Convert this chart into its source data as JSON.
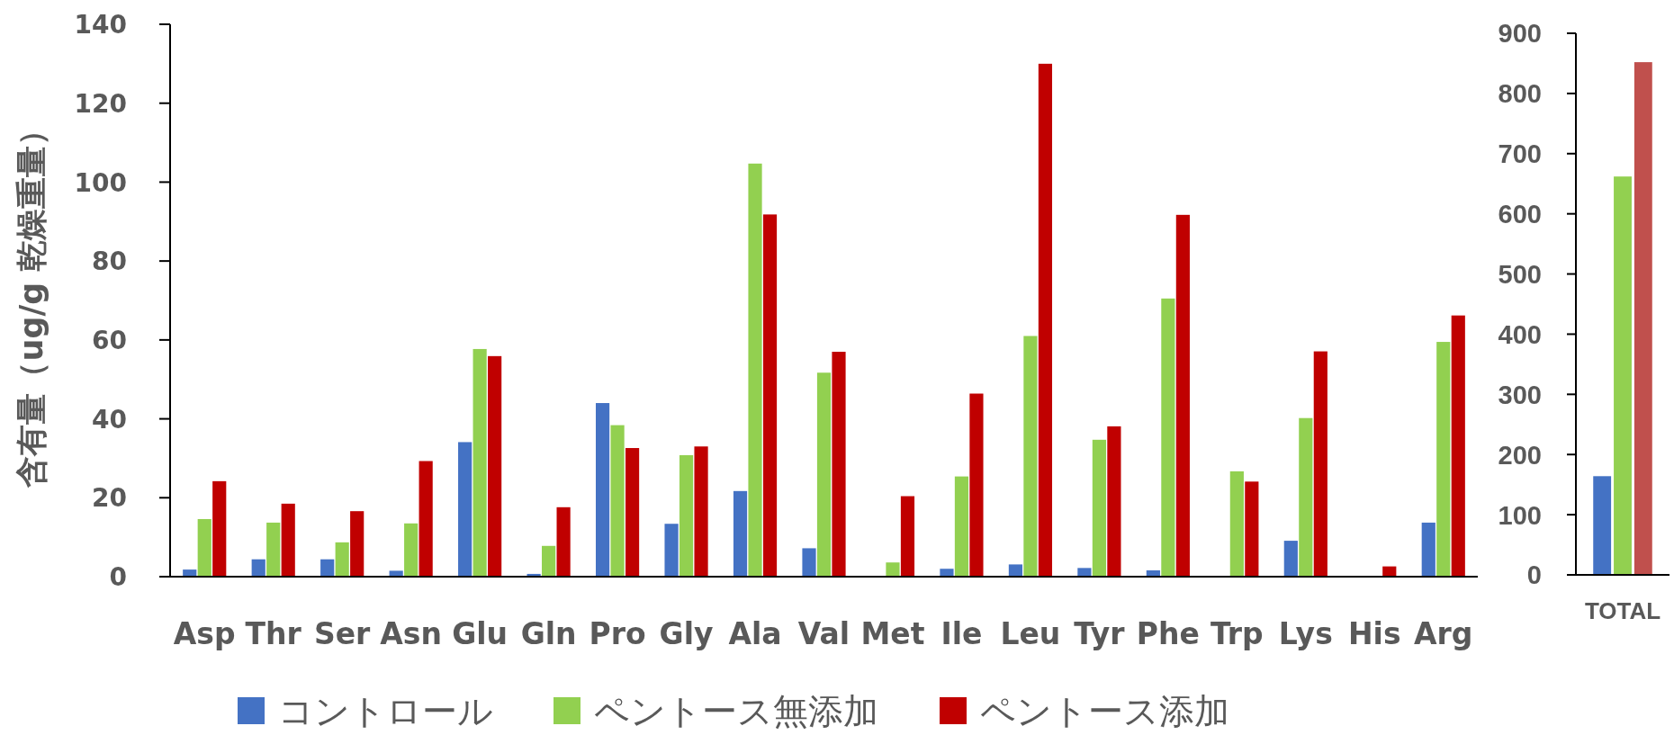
{
  "chart_data": [
    {
      "type": "bar",
      "ylabel": "含有量（ug/g 乾燥重量）",
      "categories": [
        "Asp",
        "Thr",
        "Ser",
        "Asn",
        "Glu",
        "Gln",
        "Pro",
        "Gly",
        "Ala",
        "Val",
        "Met",
        "Ile",
        "Leu",
        "Tyr",
        "Phe",
        "Trp",
        "Lys",
        "His",
        "Arg"
      ],
      "series": [
        {
          "name": "コントロール",
          "color": "#4472c4",
          "values": [
            1.8,
            4.4,
            4.4,
            1.5,
            34.1,
            0.7,
            44.0,
            13.4,
            21.7,
            7.2,
            null,
            2.0,
            3.1,
            2.2,
            1.6,
            null,
            9.1,
            null,
            13.7
          ]
        },
        {
          "name": "ペントース無添加",
          "color": "#92d050",
          "values": [
            14.6,
            13.7,
            8.7,
            13.5,
            57.7,
            7.8,
            38.4,
            30.8,
            104.7,
            51.7,
            3.6,
            25.4,
            61.0,
            34.7,
            70.5,
            26.7,
            40.2,
            null,
            59.5
          ]
        },
        {
          "name": "ペントース添加",
          "color": "#c00000",
          "values": [
            24.2,
            18.5,
            16.6,
            29.3,
            55.9,
            17.6,
            32.6,
            33.0,
            91.8,
            57.0,
            20.4,
            46.4,
            130.0,
            38.1,
            91.7,
            24.1,
            57.1,
            2.6,
            66.2
          ]
        }
      ],
      "ylim": [
        0,
        140
      ],
      "yticks": [
        0,
        20,
        40,
        60,
        80,
        100,
        120,
        140
      ],
      "legend": "bottom"
    },
    {
      "type": "bar",
      "categories": [
        "TOTAL"
      ],
      "series": [
        {
          "color": "#4472c4",
          "values": [
            164
          ]
        },
        {
          "color": "#92d050",
          "values": [
            662
          ]
        },
        {
          "color": "#c0504d",
          "values": [
            852
          ]
        }
      ],
      "ylim": [
        0,
        900
      ],
      "yticks": [
        0,
        100,
        200,
        300,
        400,
        500,
        600,
        700,
        800,
        900
      ]
    }
  ]
}
